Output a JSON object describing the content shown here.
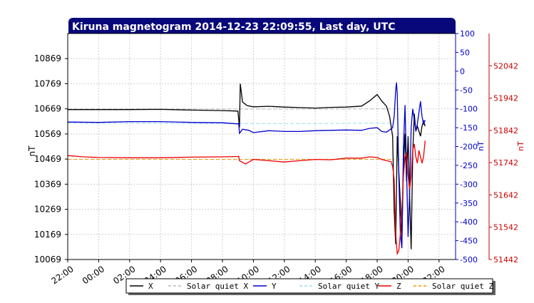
{
  "chart_data": {
    "type": "line",
    "title": "Kiruna magnetogram 2014-12-23 22:09:55, Last day, UTC",
    "x_tick_labels": [
      "22:00",
      "00:00",
      "02:00",
      "04:00",
      "06:00",
      "08:00",
      "10:00",
      "12:00",
      "14:00",
      "16:00",
      "18:00",
      "20:00",
      "22:00"
    ],
    "x_range_hours": [
      0,
      24.17
    ],
    "y_left": {
      "label": "nT",
      "range": [
        10069,
        10969
      ],
      "ticks": [
        10069,
        10169,
        10269,
        10369,
        10469,
        10569,
        10669,
        10769,
        10869
      ],
      "color": "#000000"
    },
    "y_right1": {
      "label": "nT",
      "range": [
        -500,
        100
      ],
      "ticks": [
        -500,
        -450,
        -400,
        -350,
        -300,
        -250,
        -200,
        -150,
        -100,
        -50,
        0,
        50,
        100
      ],
      "color": "#0000cc"
    },
    "y_right2": {
      "label": "nT",
      "range": [
        51442,
        52142
      ],
      "ticks": [
        51442,
        51542,
        51642,
        51742,
        51842,
        51942,
        52042
      ],
      "color": "#cc0000"
    },
    "grid": true,
    "legend_position": "bottom",
    "series": [
      {
        "name": "X",
        "axis": "left",
        "color": "#000000",
        "style": "solid",
        "x": [
          0,
          2,
          4,
          6,
          8,
          10,
          11.0,
          11.1,
          11.15,
          11.3,
          11.6,
          12,
          13,
          14,
          15,
          16,
          17,
          18,
          19,
          19.5,
          20,
          20.3,
          20.6,
          20.8,
          21.0,
          21.1,
          21.2,
          21.3,
          21.4,
          21.5,
          21.6,
          21.7,
          21.8,
          21.9,
          22.0,
          22.1,
          22.2,
          22.3,
          22.4,
          22.5,
          22.6,
          22.7,
          22.8,
          22.9,
          23.0,
          23.1
        ],
        "y": [
          10666,
          10666,
          10666,
          10667,
          10664,
          10662,
          10660,
          10595,
          10769,
          10696,
          10682,
          10677,
          10679,
          10676,
          10674,
          10672,
          10675,
          10676,
          10680,
          10700,
          10726,
          10700,
          10680,
          10640,
          10560,
          10260,
          10130,
          10560,
          10420,
          10300,
          10150,
          10440,
          10570,
          10380,
          10560,
          10320,
          10110,
          10490,
          10650,
          10580,
          10600,
          10580,
          10560,
          10600,
          10620,
          10600
        ]
      },
      {
        "name": "Solar quiet X",
        "axis": "left",
        "color": "#bbbbbb",
        "style": "dashed",
        "x": [
          0,
          4,
          8,
          12,
          16,
          20,
          21.1
        ],
        "y": [
          10669,
          10669,
          10668,
          10668,
          10668,
          10669,
          10669
        ]
      },
      {
        "name": "Y",
        "axis": "right1",
        "color": "#0000cc",
        "style": "solid",
        "x": [
          0,
          2,
          4,
          6,
          8,
          10,
          11.0,
          11.05,
          11.1,
          11.3,
          11.7,
          12,
          13,
          14,
          15,
          16,
          17,
          18,
          19,
          19.5,
          20,
          20.3,
          20.6,
          21.0,
          21.1,
          21.2,
          21.25,
          21.3,
          21.4,
          21.5,
          21.6,
          21.7,
          21.8,
          21.9,
          22.0,
          22.1,
          22.2,
          22.3,
          22.4,
          22.5,
          22.6,
          22.7,
          22.8,
          22.9,
          23.0,
          23.1
        ],
        "y": [
          -135,
          -136,
          -134,
          -134,
          -136,
          -137,
          -140,
          -138,
          -165,
          -154,
          -157,
          -163,
          -158,
          -160,
          -160,
          -158,
          -157,
          -156,
          -157,
          -152,
          -150,
          -160,
          -162,
          -150,
          -120,
          -50,
          -30,
          -60,
          -280,
          -430,
          -470,
          -200,
          -90,
          -260,
          -440,
          -320,
          -150,
          -100,
          -130,
          -160,
          -140,
          -110,
          -80,
          -120,
          -140,
          -130
        ]
      },
      {
        "name": "Solar quiet Y",
        "axis": "right1",
        "color": "#99ddee",
        "style": "dashed",
        "x": [
          0,
          4,
          8,
          12,
          16,
          20,
          21.1
        ],
        "y": [
          -138,
          -138,
          -139,
          -139,
          -139,
          -138,
          -138
        ]
      },
      {
        "name": "Z",
        "axis": "right2",
        "color": "#ee0000",
        "style": "solid",
        "x": [
          0,
          1,
          2,
          4,
          6,
          8,
          10,
          11.0,
          11.05,
          11.1,
          11.5,
          12,
          13,
          14,
          15,
          16,
          17,
          18,
          19,
          19.5,
          20,
          20.3,
          20.6,
          20.9,
          21.0,
          21.1,
          21.2,
          21.3,
          21.4,
          21.5,
          21.6,
          21.7,
          21.8,
          21.9,
          22.0,
          22.1,
          22.2,
          22.3,
          22.4,
          22.5,
          22.6,
          22.7,
          22.8,
          22.9,
          23.0,
          23.1
        ],
        "y": [
          51764,
          51760,
          51758,
          51757,
          51757,
          51759,
          51760,
          51761,
          51762,
          51748,
          51738,
          51752,
          51748,
          51744,
          51748,
          51752,
          51751,
          51756,
          51756,
          51760,
          51758,
          51752,
          51748,
          51745,
          51730,
          51690,
          51520,
          51460,
          51470,
          51520,
          51600,
          51700,
          51760,
          51770,
          51700,
          51660,
          51700,
          51780,
          51800,
          51760,
          51740,
          51780,
          51760,
          51740,
          51760,
          51810
        ]
      },
      {
        "name": "Solar quiet Z",
        "axis": "right2",
        "color": "#ee9900",
        "style": "dashed",
        "x": [
          0,
          4,
          8,
          12,
          16,
          20,
          21.1
        ],
        "y": [
          51752,
          51752,
          51752,
          51752,
          51752,
          51752,
          51752
        ]
      }
    ]
  }
}
